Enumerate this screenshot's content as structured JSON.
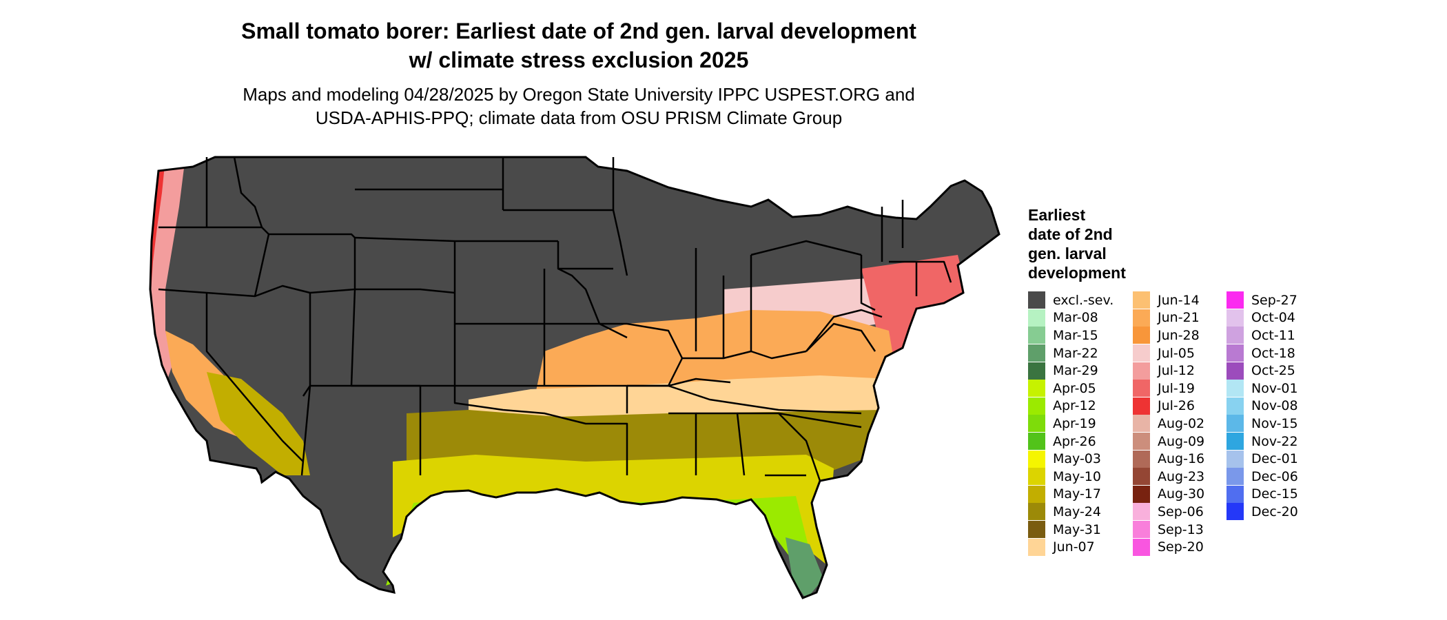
{
  "map": {
    "title_line1": "Small tomato borer: Earliest date of 2nd gen. larval development",
    "title_line2": "w/ climate stress exclusion 2025",
    "subtitle_line1": "Maps and modeling 04/28/2025 by Oregon State University IPPC USPEST.ORG and",
    "subtitle_line2": "USDA-APHIS-PPQ; climate data from OSU PRISM Climate Group"
  },
  "legend": {
    "title_lines": [
      "Earliest",
      "date of 2nd",
      "gen. larval",
      "development"
    ],
    "columns": [
      [
        {
          "label": "excl.-sev.",
          "color": "#4a4a4a"
        },
        {
          "label": "Mar-08",
          "color": "#b6f2c2"
        },
        {
          "label": "Mar-15",
          "color": "#86cc92"
        },
        {
          "label": "Mar-22",
          "color": "#5f9f6a"
        },
        {
          "label": "Mar-29",
          "color": "#3a7440"
        },
        {
          "label": "Apr-05",
          "color": "#c6f200"
        },
        {
          "label": "Apr-12",
          "color": "#9bea00"
        },
        {
          "label": "Apr-19",
          "color": "#7edc0a"
        },
        {
          "label": "Apr-26",
          "color": "#52c31a"
        },
        {
          "label": "May-03",
          "color": "#f5f500"
        },
        {
          "label": "May-10",
          "color": "#dcd400"
        },
        {
          "label": "May-17",
          "color": "#c2ae00"
        },
        {
          "label": "May-24",
          "color": "#9c8a08"
        },
        {
          "label": "May-31",
          "color": "#7a5c10"
        },
        {
          "label": "Jun-07",
          "color": "#ffd596"
        }
      ],
      [
        {
          "label": "Jun-14",
          "color": "#fcc072"
        },
        {
          "label": "Jun-21",
          "color": "#fbaa56"
        },
        {
          "label": "Jun-28",
          "color": "#f8963a"
        },
        {
          "label": "Jul-05",
          "color": "#f6cccc"
        },
        {
          "label": "Jul-12",
          "color": "#f39d9d"
        },
        {
          "label": "Jul-19",
          "color": "#f06666"
        },
        {
          "label": "Jul-26",
          "color": "#ee3333"
        },
        {
          "label": "Aug-02",
          "color": "#e8b4a6"
        },
        {
          "label": "Aug-09",
          "color": "#cc8e7c"
        },
        {
          "label": "Aug-16",
          "color": "#b06a58"
        },
        {
          "label": "Aug-23",
          "color": "#944634"
        },
        {
          "label": "Aug-30",
          "color": "#782210"
        },
        {
          "label": "Sep-06",
          "color": "#f9b0dc"
        },
        {
          "label": "Sep-13",
          "color": "#f97fdb"
        },
        {
          "label": "Sep-20",
          "color": "#f956e0"
        }
      ],
      [
        {
          "label": "Sep-27",
          "color": "#fb2af0"
        },
        {
          "label": "Oct-04",
          "color": "#e2c2ec"
        },
        {
          "label": "Oct-11",
          "color": "#cfa2e0"
        },
        {
          "label": "Oct-18",
          "color": "#b97ad2"
        },
        {
          "label": "Oct-25",
          "color": "#9c4cbc"
        },
        {
          "label": "Nov-01",
          "color": "#b2e6f4"
        },
        {
          "label": "Nov-08",
          "color": "#88d2f0"
        },
        {
          "label": "Nov-15",
          "color": "#5cb8e8"
        },
        {
          "label": "Nov-22",
          "color": "#2ea6e0"
        },
        {
          "label": "Dec-01",
          "color": "#a6c2ec"
        },
        {
          "label": "Dec-06",
          "color": "#7a98ea"
        },
        {
          "label": "Dec-15",
          "color": "#506ef0"
        },
        {
          "label": "Dec-20",
          "color": "#2438f8"
        }
      ]
    ]
  },
  "regions": {
    "colors": {
      "excluded": "#4a4a4a",
      "north_band": "#fbaa56",
      "midsouth_band": "#ffd596",
      "lower_band": "#9c8a08",
      "gulf_band": "#dcd400",
      "coast_band": "#9bea00",
      "florida_tip": "#5f9f6a",
      "west_coast": "#f39d9d",
      "pacific_edge": "#ee3333",
      "california_valley": "#fbaa56",
      "desert_southwest": "#c2ae00",
      "ohio_valley": "#f6cccc",
      "northeast_coast": "#f06666",
      "state_border": "#000000"
    }
  }
}
